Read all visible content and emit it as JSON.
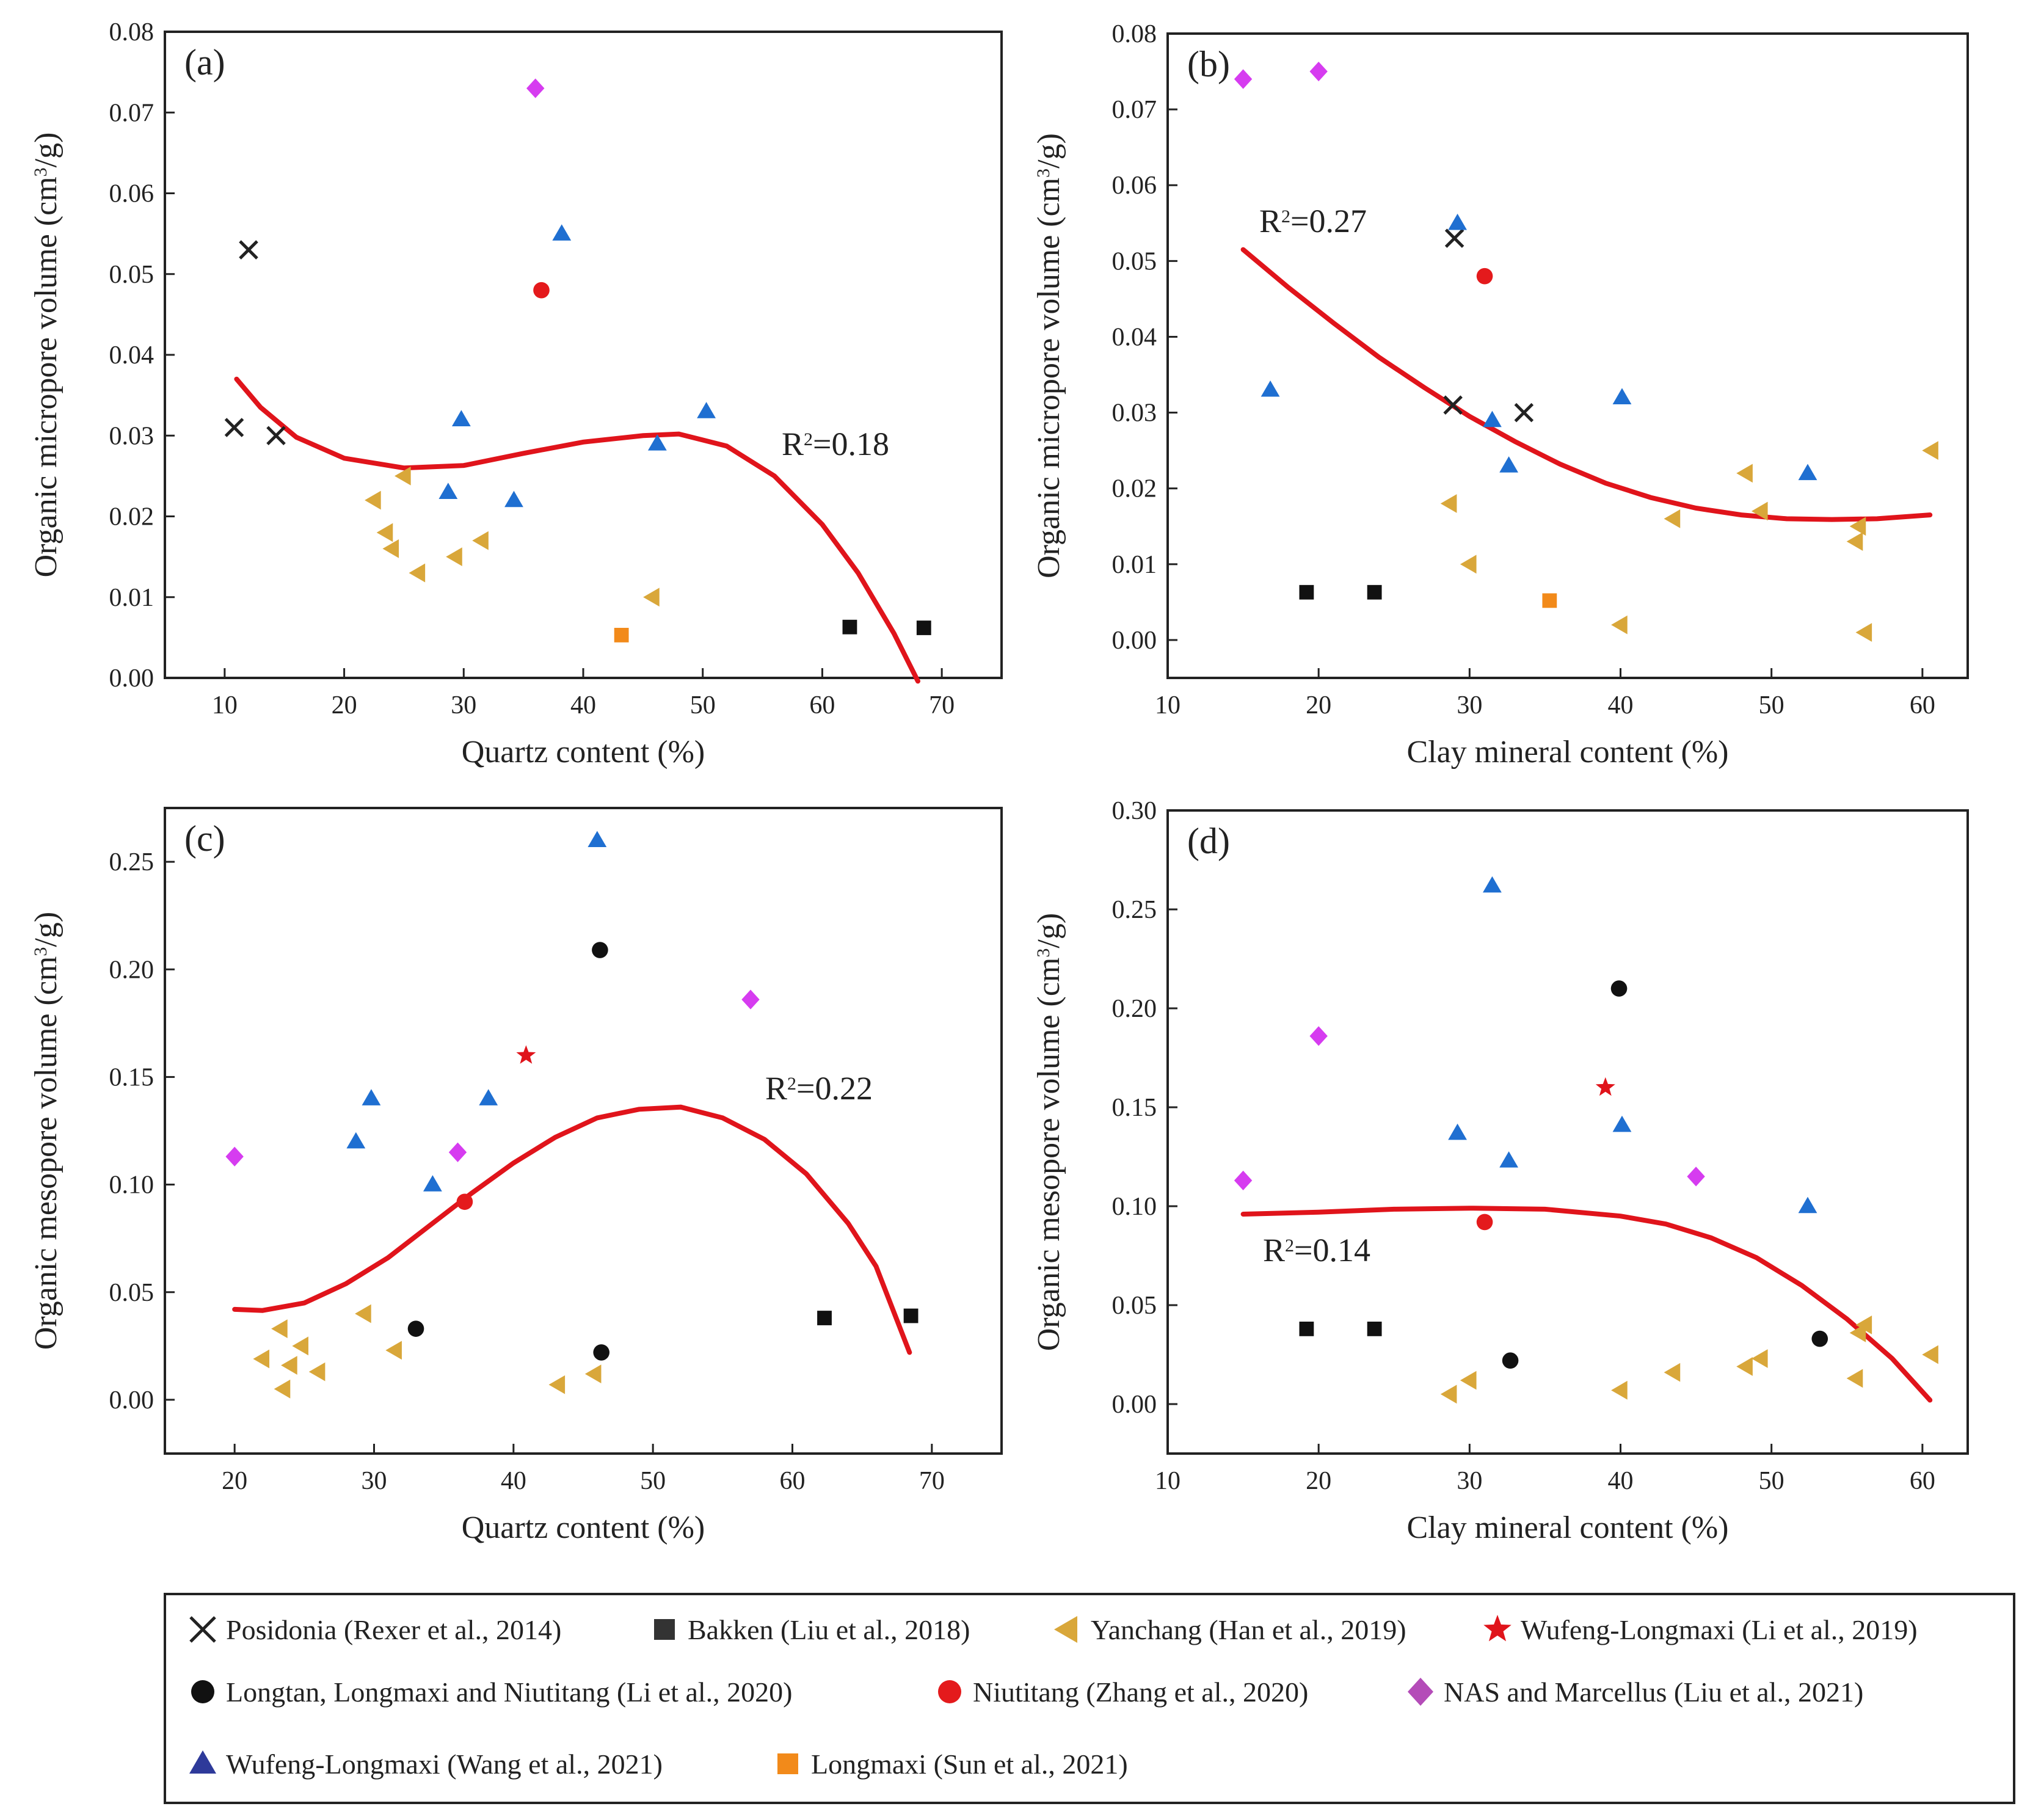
{
  "series": [
    {
      "key": "posidonia",
      "label": "Posidonia (Rexer et al., 2014)",
      "marker": "x",
      "color": "#222222"
    },
    {
      "key": "bakken",
      "label": "Bakken (Liu et al., 2018)",
      "marker": "square",
      "color": "#111111"
    },
    {
      "key": "yanchang",
      "label": "Yanchang (Han et al., 2019)",
      "marker": "tri-left",
      "color": "#d9a73a"
    },
    {
      "key": "wufeng_li",
      "label": "Wufeng-Longmaxi (Li et al., 2019)",
      "marker": "star",
      "color": "#e0141b"
    },
    {
      "key": "longtan",
      "label": "Longtan, Longmaxi and Niutitang (Li et al., 2020)",
      "marker": "circle",
      "color": "#111111"
    },
    {
      "key": "niutitang",
      "label": "Niutitang (Zhang et al., 2020)",
      "marker": "circle",
      "color": "#e41a1c"
    },
    {
      "key": "nas",
      "label": "NAS and Marcellus (Liu et al., 2021)",
      "marker": "diamond",
      "color": "#d63cf0"
    },
    {
      "key": "wufeng_wang",
      "label": "Wufeng-Longmaxi (Wang et al., 2021)",
      "marker": "tri-up",
      "color": "#1f6fd1"
    },
    {
      "key": "longmaxi_sun",
      "label": "Longmaxi (Sun et al., 2021)",
      "marker": "square",
      "color": "#f28a1a"
    }
  ],
  "legend_series": [
    {
      "key": "posidonia",
      "label": "Posidonia (Rexer et al., 2014)",
      "marker": "x",
      "color": "#222222"
    },
    {
      "key": "bakken",
      "label": "Bakken (Liu et al., 2018)",
      "marker": "square",
      "color": "#333333"
    },
    {
      "key": "yanchang",
      "label": "Yanchang (Han et al., 2019)",
      "marker": "tri-left",
      "color": "#d9a73a"
    },
    {
      "key": "wufeng_li",
      "label": "Wufeng-Longmaxi (Li et al., 2019)",
      "marker": "star",
      "color": "#e0141b"
    },
    {
      "key": "longtan",
      "label": "Longtan, Longmaxi and Niutitang (Li et al., 2020)",
      "marker": "circle",
      "color": "#111111"
    },
    {
      "key": "niutitang",
      "label": "Niutitang (Zhang et al., 2020)",
      "marker": "circle",
      "color": "#e41a1c"
    },
    {
      "key": "nas",
      "label": "NAS and Marcellus (Liu et al., 2021)",
      "marker": "diamond",
      "color": "#b44cb8"
    },
    {
      "key": "wufeng_wang",
      "label": "Wufeng-Longmaxi (Wang et al., 2021)",
      "marker": "tri-up",
      "color": "#2e3a9a"
    },
    {
      "key": "longmaxi_sun",
      "label": "Longmaxi (Sun et al., 2021)",
      "marker": "square",
      "color": "#f28a1a"
    }
  ],
  "chart_data": [
    {
      "id": "a",
      "panel_label": "(a)",
      "type": "scatter",
      "xlabel": "Quartz content (%)",
      "ylabel": "Organic micropore volume (cm3/g)",
      "ylabel_main": "Organic micropore volume (cm",
      "ylabel_sup": "3",
      "ylabel_tail": "/g)",
      "xlim": [
        5,
        75
      ],
      "ylim": [
        0,
        0.08
      ],
      "xticks": [
        10,
        20,
        30,
        40,
        50,
        60,
        70
      ],
      "yticks": [
        0,
        0.01,
        0.02,
        0.03,
        0.04,
        0.05,
        0.06,
        0.07,
        0.08
      ],
      "ytick_labels": [
        "0.00",
        "0.01",
        "0.02",
        "0.03",
        "0.04",
        "0.05",
        "0.06",
        "0.07",
        "0.08"
      ],
      "r2": {
        "prefix": "R",
        "sup": "2",
        "value": "=0.18"
      },
      "fit": [
        [
          11,
          0.037
        ],
        [
          13,
          0.0335
        ],
        [
          16,
          0.0298
        ],
        [
          20,
          0.0272
        ],
        [
          25,
          0.026
        ],
        [
          30,
          0.0263
        ],
        [
          35,
          0.0278
        ],
        [
          40,
          0.0292
        ],
        [
          45,
          0.03
        ],
        [
          48,
          0.0302
        ],
        [
          52,
          0.0287
        ],
        [
          56,
          0.025
        ],
        [
          60,
          0.019
        ],
        [
          63,
          0.013
        ],
        [
          66,
          0.0055
        ],
        [
          68,
          -0.0004
        ]
      ],
      "points": {
        "posidonia": [
          [
            12,
            0.053
          ],
          [
            10.8,
            0.031
          ],
          [
            14.3,
            0.03
          ]
        ],
        "bakken": [
          [
            62.3,
            0.0063
          ],
          [
            68.5,
            0.0062
          ]
        ],
        "yanchang": [
          [
            22.5,
            0.022
          ],
          [
            23.5,
            0.018
          ],
          [
            24,
            0.016
          ],
          [
            25,
            0.025
          ],
          [
            26.2,
            0.013
          ],
          [
            29.3,
            0.015
          ],
          [
            31.5,
            0.017
          ],
          [
            45.8,
            0.01
          ]
        ],
        "niutitang": [
          [
            36.5,
            0.048
          ]
        ],
        "nas": [
          [
            36,
            0.073
          ]
        ],
        "wufeng_wang": [
          [
            38.2,
            0.055
          ],
          [
            29.8,
            0.032
          ],
          [
            28.7,
            0.023
          ],
          [
            34.2,
            0.022
          ],
          [
            46.2,
            0.029
          ],
          [
            50.3,
            0.033
          ]
        ],
        "longmaxi_sun": [
          [
            43.2,
            0.0053
          ]
        ]
      }
    },
    {
      "id": "b",
      "panel_label": "(b)",
      "type": "scatter",
      "xlabel": "Clay mineral content (%)",
      "ylabel": "Organic micropore volume (cm3/g)",
      "ylabel_main": "Organic micropore volume (cm",
      "ylabel_sup": "3",
      "ylabel_tail": "/g)",
      "xlim": [
        10,
        63
      ],
      "ylim": [
        -0.005,
        0.08
      ],
      "xticks": [
        10,
        20,
        30,
        40,
        50,
        60
      ],
      "yticks": [
        0,
        0.01,
        0.02,
        0.03,
        0.04,
        0.05,
        0.06,
        0.07,
        0.08
      ],
      "ytick_labels": [
        "0.00",
        "0.01",
        "0.02",
        "0.03",
        "0.04",
        "0.05",
        "0.06",
        "0.07",
        "0.08"
      ],
      "r2": {
        "prefix": "R",
        "sup": "2",
        "value": "=0.27"
      },
      "fit": [
        [
          15,
          0.0515
        ],
        [
          18,
          0.0465
        ],
        [
          21,
          0.0418
        ],
        [
          24,
          0.0373
        ],
        [
          27,
          0.0333
        ],
        [
          30,
          0.0295
        ],
        [
          33,
          0.0262
        ],
        [
          36,
          0.0232
        ],
        [
          39,
          0.0207
        ],
        [
          42,
          0.0188
        ],
        [
          45,
          0.0174
        ],
        [
          48,
          0.0165
        ],
        [
          51,
          0.016
        ],
        [
          54,
          0.0159
        ],
        [
          57,
          0.016
        ],
        [
          60.5,
          0.0165
        ]
      ],
      "points": {
        "posidonia": [
          [
            29,
            0.053
          ],
          [
            28.9,
            0.031
          ],
          [
            33.6,
            0.03
          ]
        ],
        "bakken": [
          [
            19.2,
            0.0063
          ],
          [
            23.7,
            0.0063
          ]
        ],
        "yanchang": [
          [
            28.7,
            0.018
          ],
          [
            30,
            0.01
          ],
          [
            40,
            0.002
          ],
          [
            43.5,
            0.016
          ],
          [
            48.3,
            0.022
          ],
          [
            49.3,
            0.017
          ],
          [
            55.6,
            0.013
          ],
          [
            55.8,
            0.015
          ],
          [
            56.2,
            0.001
          ],
          [
            60.6,
            0.025
          ]
        ],
        "niutitang": [
          [
            31,
            0.048
          ]
        ],
        "nas": [
          [
            15,
            0.074
          ],
          [
            20,
            0.075
          ]
        ],
        "wufeng_wang": [
          [
            16.8,
            0.033
          ],
          [
            29.2,
            0.055
          ],
          [
            31.5,
            0.029
          ],
          [
            32.6,
            0.023
          ],
          [
            40.1,
            0.032
          ],
          [
            52.4,
            0.022
          ]
        ],
        "longmaxi_sun": [
          [
            35.3,
            0.0052
          ]
        ]
      }
    },
    {
      "id": "c",
      "panel_label": "(c)",
      "type": "scatter",
      "xlabel": "Quartz content (%)",
      "ylabel": "Organic mesopore volume (cm3/g)",
      "ylabel_main": "Organic mesopore volume (cm",
      "ylabel_sup": "3",
      "ylabel_tail": "/g)",
      "xlim": [
        15,
        75
      ],
      "ylim": [
        -0.025,
        0.275
      ],
      "xticks": [
        20,
        30,
        40,
        50,
        60,
        70
      ],
      "yticks": [
        0,
        0.05,
        0.1,
        0.15,
        0.2,
        0.25
      ],
      "ytick_labels": [
        "0.00",
        "0.05",
        "0.10",
        "0.15",
        "0.20",
        "0.25"
      ],
      "r2": {
        "prefix": "R",
        "sup": "2",
        "value": "=0.22"
      },
      "fit": [
        [
          20,
          0.042
        ],
        [
          22,
          0.0415
        ],
        [
          25,
          0.045
        ],
        [
          28,
          0.054
        ],
        [
          31,
          0.066
        ],
        [
          34,
          0.081
        ],
        [
          37,
          0.096
        ],
        [
          40,
          0.11
        ],
        [
          43,
          0.122
        ],
        [
          46,
          0.131
        ],
        [
          49,
          0.135
        ],
        [
          52,
          0.136
        ],
        [
          55,
          0.131
        ],
        [
          58,
          0.121
        ],
        [
          61,
          0.105
        ],
        [
          64,
          0.082
        ],
        [
          66,
          0.062
        ],
        [
          68.4,
          0.022
        ]
      ],
      "points": {
        "bakken": [
          [
            62.3,
            0.038
          ],
          [
            68.5,
            0.039
          ]
        ],
        "yanchang": [
          [
            22,
            0.019
          ],
          [
            23.3,
            0.033
          ],
          [
            23.5,
            0.005
          ],
          [
            24,
            0.016
          ],
          [
            24.8,
            0.025
          ],
          [
            26,
            0.013
          ],
          [
            29.3,
            0.04
          ],
          [
            31.5,
            0.023
          ],
          [
            43.2,
            0.007
          ],
          [
            45.8,
            0.012
          ]
        ],
        "wufeng_li": [
          [
            40.9,
            0.16
          ]
        ],
        "longtan": [
          [
            33,
            0.033
          ],
          [
            46.2,
            0.209
          ],
          [
            46.3,
            0.022
          ]
        ],
        "niutitang": [
          [
            36.5,
            0.092
          ]
        ],
        "nas": [
          [
            20,
            0.113
          ],
          [
            36,
            0.115
          ],
          [
            57,
            0.186
          ]
        ],
        "wufeng_wang": [
          [
            28.7,
            0.12
          ],
          [
            29.8,
            0.14
          ],
          [
            34.2,
            0.1
          ],
          [
            38.2,
            0.14
          ],
          [
            46,
            0.26
          ]
        ]
      }
    },
    {
      "id": "d",
      "panel_label": "(d)",
      "type": "scatter",
      "xlabel": "Clay mineral content (%)",
      "ylabel": "Organic mesopore volume (cm3/g)",
      "ylabel_main": "Organic mesopore volume (cm",
      "ylabel_sup": "3",
      "ylabel_tail": "/g)",
      "xlim": [
        10,
        63
      ],
      "ylim": [
        -0.025,
        0.3
      ],
      "xticks": [
        10,
        20,
        30,
        40,
        50,
        60
      ],
      "yticks": [
        0,
        0.05,
        0.1,
        0.15,
        0.2,
        0.25,
        0.3
      ],
      "ytick_labels": [
        "0.00",
        "0.05",
        "0.10",
        "0.15",
        "0.20",
        "0.25",
        "0.30"
      ],
      "r2": {
        "prefix": "R",
        "sup": "2",
        "value": "=0.14"
      },
      "fit": [
        [
          15,
          0.096
        ],
        [
          20,
          0.097
        ],
        [
          25,
          0.0985
        ],
        [
          30,
          0.099
        ],
        [
          35,
          0.0985
        ],
        [
          40,
          0.095
        ],
        [
          43,
          0.091
        ],
        [
          46,
          0.084
        ],
        [
          49,
          0.074
        ],
        [
          52,
          0.06
        ],
        [
          55,
          0.043
        ],
        [
          58,
          0.023
        ],
        [
          60.5,
          0.002
        ]
      ],
      "points": {
        "bakken": [
          [
            19.2,
            0.038
          ],
          [
            23.7,
            0.038
          ]
        ],
        "yanchang": [
          [
            28.7,
            0.005
          ],
          [
            30,
            0.012
          ],
          [
            40,
            0.007
          ],
          [
            43.5,
            0.016
          ],
          [
            48.3,
            0.019
          ],
          [
            49.3,
            0.023
          ],
          [
            55.6,
            0.013
          ],
          [
            55.8,
            0.036
          ],
          [
            56.2,
            0.04
          ],
          [
            60.6,
            0.025
          ]
        ],
        "wufeng_li": [
          [
            39,
            0.16
          ]
        ],
        "longtan": [
          [
            32.7,
            0.022
          ],
          [
            39.9,
            0.21
          ],
          [
            53.2,
            0.033
          ]
        ],
        "niutitang": [
          [
            31,
            0.092
          ]
        ],
        "nas": [
          [
            15,
            0.113
          ],
          [
            20,
            0.186
          ],
          [
            45,
            0.115
          ]
        ],
        "wufeng_wang": [
          [
            29.2,
            0.137
          ],
          [
            31.5,
            0.262
          ],
          [
            32.6,
            0.123
          ],
          [
            40.1,
            0.141
          ],
          [
            52.4,
            0.1
          ]
        ]
      }
    }
  ]
}
